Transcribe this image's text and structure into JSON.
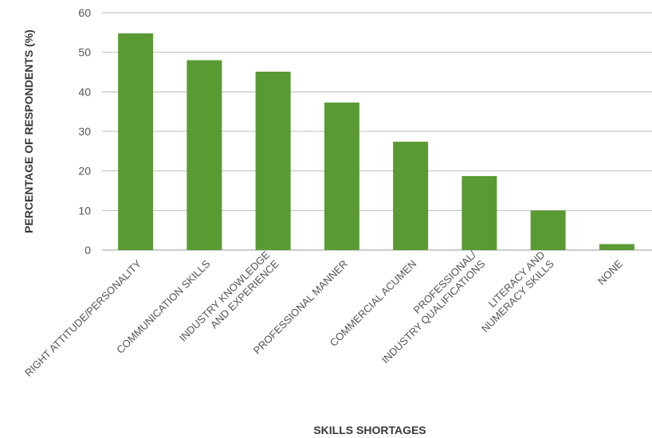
{
  "chart_data": {
    "type": "bar",
    "title": "",
    "xlabel": "SKILLS SHORTAGES",
    "ylabel": "PERCENTAGE OF RESPONDENTS (%)",
    "ylim": [
      0,
      60
    ],
    "yticks": [
      0,
      10,
      20,
      30,
      40,
      50,
      60
    ],
    "grid": true,
    "legend": "none",
    "bar_color": "#5a9a32",
    "categories": [
      [
        "RIGHT ATTITUDE/PERSONALITY"
      ],
      [
        "COMMUNICATION SKILLS"
      ],
      [
        "INDUSTRY KNOWLEDGE",
        "AND EXPERIENCE"
      ],
      [
        "PROFESSIONAL MANNER"
      ],
      [
        "COMMERCIAL ACUMEN"
      ],
      [
        "PROFESSIONAL/",
        "INDUSTRY QUALIFICATIONS"
      ],
      [
        "LITERACY AND",
        "NUMERACY SKILLS"
      ],
      [
        "NONE"
      ]
    ],
    "values": [
      54.8,
      48,
      45.1,
      37.3,
      27.4,
      18.7,
      10,
      1.5
    ]
  }
}
